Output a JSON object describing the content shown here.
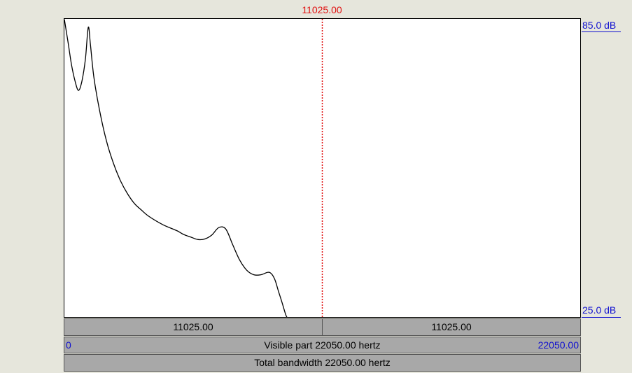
{
  "cursor": {
    "frequency": "11025.00"
  },
  "axis": {
    "top_label": "85.0 dB",
    "bottom_label": "25.0 dB"
  },
  "selection_bar": {
    "left_width": "11025.00",
    "right_width": "11025.00"
  },
  "visible_bar": {
    "start": "0",
    "text": "Visible part 22050.00 hertz",
    "end": "22050.00"
  },
  "total_bar": {
    "text": "Total bandwidth 22050.00 hertz"
  },
  "colors": {
    "cursor": "#e01010",
    "axis_label": "#1010d0",
    "curve": "#000000",
    "bar_fill": "#a8a8a8",
    "background": "#e6e6dc"
  },
  "chart_data": {
    "type": "line",
    "x_unit": "Hz",
    "y_unit": "dB",
    "xlim": [
      0,
      22050
    ],
    "ylim": [
      25.0,
      85.0
    ],
    "cursor_x": 11025,
    "series": [
      {
        "values": [
          [
            0,
            84.9
          ],
          [
            150,
            80.5
          ],
          [
            300,
            75.9
          ],
          [
            450,
            72.6
          ],
          [
            600,
            70.6
          ],
          [
            750,
            72.5
          ],
          [
            900,
            77.0
          ],
          [
            1020,
            83.3
          ],
          [
            1110,
            80.0
          ],
          [
            1260,
            73.3
          ],
          [
            1500,
            66.7
          ],
          [
            1800,
            60.4
          ],
          [
            2100,
            55.9
          ],
          [
            2400,
            52.4
          ],
          [
            2700,
            49.8
          ],
          [
            3000,
            47.8
          ],
          [
            3300,
            46.5
          ],
          [
            3600,
            45.3
          ],
          [
            4200,
            43.6
          ],
          [
            4800,
            42.4
          ],
          [
            5100,
            41.6
          ],
          [
            5400,
            41.1
          ],
          [
            5700,
            40.6
          ],
          [
            6000,
            40.7
          ],
          [
            6300,
            41.5
          ],
          [
            6600,
            43.0
          ],
          [
            6900,
            42.7
          ],
          [
            7200,
            39.5
          ],
          [
            7500,
            36.4
          ],
          [
            7800,
            34.4
          ],
          [
            8100,
            33.5
          ],
          [
            8400,
            33.5
          ],
          [
            8700,
            34.0
          ],
          [
            8850,
            33.7
          ],
          [
            9000,
            32.5
          ],
          [
            9150,
            30.2
          ],
          [
            9300,
            28.0
          ],
          [
            9450,
            25.6
          ],
          [
            9510,
            25.0
          ]
        ]
      }
    ]
  }
}
